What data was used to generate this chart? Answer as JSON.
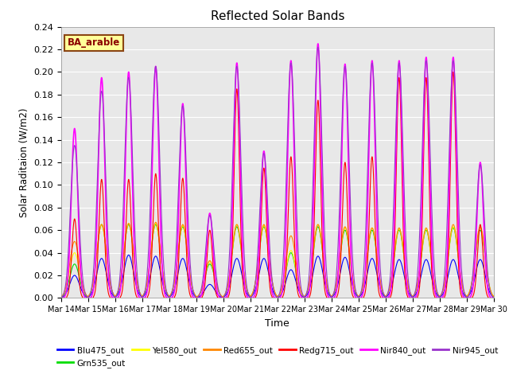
{
  "title": "Reflected Solar Bands",
  "xlabel": "Time",
  "ylabel": "Solar Raditaion (W/m2)",
  "annotation_text": "BA_arable",
  "annotation_bg": "#FFFF99",
  "annotation_border": "#8B4513",
  "annotation_text_color": "#8B0000",
  "ylim": [
    0.0,
    0.24
  ],
  "yticks": [
    0.0,
    0.02,
    0.04,
    0.06,
    0.08,
    0.1,
    0.12,
    0.14,
    0.16,
    0.18,
    0.2,
    0.22,
    0.24
  ],
  "background_color": "#e8e8e8",
  "series_order": [
    "Blu475_out",
    "Grn535_out",
    "Yel580_out",
    "Red655_out",
    "Redg715_out",
    "Nir840_out",
    "Nir945_out"
  ],
  "series": {
    "Blu475_out": {
      "color": "#0000FF",
      "lw": 0.8
    },
    "Grn535_out": {
      "color": "#00DD00",
      "lw": 0.8
    },
    "Yel580_out": {
      "color": "#FFFF00",
      "lw": 0.8
    },
    "Red655_out": {
      "color": "#FF8800",
      "lw": 0.8
    },
    "Redg715_out": {
      "color": "#FF0000",
      "lw": 0.8
    },
    "Nir840_out": {
      "color": "#FF00FF",
      "lw": 1.2
    },
    "Nir945_out": {
      "color": "#9933CC",
      "lw": 0.8
    }
  },
  "n_days": 16,
  "start_day": 14,
  "points_per_day": 288,
  "day_peaks": {
    "Blu475_out": [
      0.02,
      0.035,
      0.038,
      0.037,
      0.035,
      0.012,
      0.035,
      0.035,
      0.025,
      0.037,
      0.036,
      0.035,
      0.034,
      0.034,
      0.034,
      0.034
    ],
    "Grn535_out": [
      0.03,
      0.065,
      0.065,
      0.065,
      0.063,
      0.03,
      0.063,
      0.063,
      0.04,
      0.063,
      0.06,
      0.06,
      0.06,
      0.06,
      0.062,
      0.06
    ],
    "Yel580_out": [
      0.04,
      0.065,
      0.066,
      0.066,
      0.064,
      0.032,
      0.065,
      0.064,
      0.042,
      0.065,
      0.062,
      0.062,
      0.061,
      0.061,
      0.063,
      0.062
    ],
    "Red655_out": [
      0.05,
      0.065,
      0.066,
      0.067,
      0.065,
      0.033,
      0.065,
      0.065,
      0.055,
      0.065,
      0.063,
      0.062,
      0.062,
      0.062,
      0.065,
      0.063
    ],
    "Redg715_out": [
      0.07,
      0.105,
      0.105,
      0.11,
      0.106,
      0.06,
      0.185,
      0.115,
      0.125,
      0.175,
      0.12,
      0.125,
      0.195,
      0.195,
      0.2,
      0.065
    ],
    "Nir840_out": [
      0.15,
      0.195,
      0.2,
      0.205,
      0.172,
      0.075,
      0.208,
      0.13,
      0.21,
      0.225,
      0.207,
      0.21,
      0.21,
      0.213,
      0.213,
      0.12
    ],
    "Nir945_out": [
      0.135,
      0.183,
      0.195,
      0.205,
      0.17,
      0.073,
      0.205,
      0.128,
      0.208,
      0.222,
      0.205,
      0.208,
      0.208,
      0.21,
      0.21,
      0.118
    ]
  },
  "day_widths": {
    "Blu475_out": 0.18,
    "Grn535_out": 0.18,
    "Yel580_out": 0.18,
    "Red655_out": 0.18,
    "Redg715_out": 0.1,
    "Nir840_out": 0.12,
    "Nir945_out": 0.15
  }
}
